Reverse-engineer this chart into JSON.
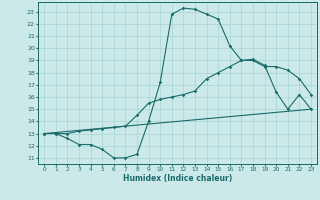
{
  "xlabel": "Humidex (Indice chaleur)",
  "xlim": [
    -0.5,
    23.5
  ],
  "ylim": [
    10.5,
    23.8
  ],
  "xticks": [
    0,
    1,
    2,
    3,
    4,
    5,
    6,
    7,
    8,
    9,
    10,
    11,
    12,
    13,
    14,
    15,
    16,
    17,
    18,
    19,
    20,
    21,
    22,
    23
  ],
  "yticks": [
    11,
    12,
    13,
    14,
    15,
    16,
    17,
    18,
    19,
    20,
    21,
    22,
    23
  ],
  "bg_color": "#cce9e9",
  "grid_color": "#a8d4d4",
  "line_color": "#1a6b6b",
  "line1_x": [
    0,
    1,
    2,
    3,
    4,
    5,
    6,
    7,
    8,
    9,
    10,
    11,
    12,
    13,
    14,
    15,
    16,
    17,
    18,
    19,
    20,
    21,
    22,
    23
  ],
  "line1_y": [
    13.0,
    13.0,
    12.6,
    12.1,
    12.1,
    11.7,
    11.0,
    11.0,
    11.3,
    14.0,
    17.2,
    22.8,
    23.3,
    23.2,
    22.8,
    22.4,
    20.2,
    19.0,
    19.1,
    18.6,
    16.4,
    15.0,
    16.2,
    15.0
  ],
  "line2_x": [
    0,
    1,
    2,
    3,
    4,
    5,
    6,
    7,
    8,
    9,
    10,
    11,
    12,
    13,
    14,
    15,
    16,
    17,
    18,
    19,
    20,
    21,
    22,
    23
  ],
  "line2_y": [
    13.0,
    13.0,
    13.0,
    13.2,
    13.3,
    13.4,
    13.5,
    13.6,
    14.5,
    15.5,
    15.8,
    16.0,
    16.2,
    16.5,
    17.5,
    18.0,
    18.5,
    19.0,
    19.0,
    18.5,
    18.5,
    18.2,
    17.5,
    16.2
  ],
  "line3_x": [
    0,
    23
  ],
  "line3_y": [
    13.0,
    15.0
  ]
}
